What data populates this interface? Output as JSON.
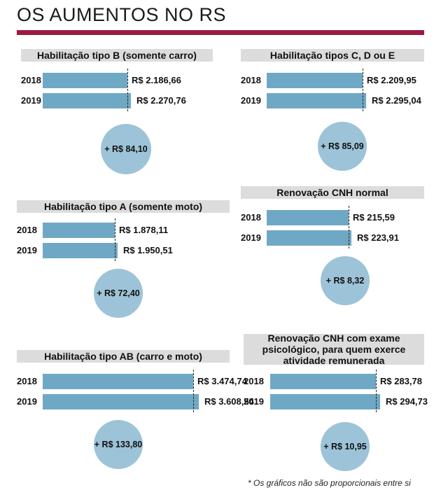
{
  "title": "OS AUMENTOS NO RS",
  "footnote": "* Os gráficos não são proporcionais entre si",
  "colors": {
    "accent": "#9b1b40",
    "bar": "#6fa8c4",
    "circle": "#9dc3d8",
    "header_bg": "#dcdcdc"
  },
  "chart_data": [
    {
      "type": "bar",
      "title": "Habilitação tipo B (somente carro)",
      "categories": [
        "2018",
        "2019"
      ],
      "values": [
        2186.66,
        2270.76
      ],
      "value_labels": [
        "R$ 2.186,66",
        "R$ 2.270,76"
      ],
      "increase": "+ R$ 84,10"
    },
    {
      "type": "bar",
      "title": "Habilitação tipos C, D ou E",
      "categories": [
        "2018",
        "2019"
      ],
      "values": [
        2209.95,
        2295.04
      ],
      "value_labels": [
        "R$ 2.209,95",
        "R$ 2.295,04"
      ],
      "increase": "+ R$ 85,09"
    },
    {
      "type": "bar",
      "title": "Habilitação tipo A (somente moto)",
      "categories": [
        "2018",
        "2019"
      ],
      "values": [
        1878.11,
        1950.51
      ],
      "value_labels": [
        "R$ 1.878,11",
        "R$ 1.950,51"
      ],
      "increase": "+ R$ 72,40"
    },
    {
      "type": "bar",
      "title": "Renovação CNH normal",
      "categories": [
        "2018",
        "2019"
      ],
      "values": [
        215.59,
        223.91
      ],
      "value_labels": [
        "R$ 215,59",
        "R$ 223,91"
      ],
      "increase": "+ R$ 8,32"
    },
    {
      "type": "bar",
      "title": "Habilitação tipo AB (carro e moto)",
      "categories": [
        "2018",
        "2019"
      ],
      "values": [
        3474.74,
        3608.54
      ],
      "value_labels": [
        "R$ 3.474,74",
        "R$ 3.608,54"
      ],
      "increase": "+ R$ 133,80"
    },
    {
      "type": "bar",
      "title": "Renovação CNH com exame psicológico, para quem exerce atividade remunerada",
      "categories": [
        "2018",
        "2019"
      ],
      "values": [
        283.78,
        294.73
      ],
      "value_labels": [
        "R$ 283,78",
        "R$ 294,73"
      ],
      "increase": "+ R$ 10,95"
    }
  ]
}
